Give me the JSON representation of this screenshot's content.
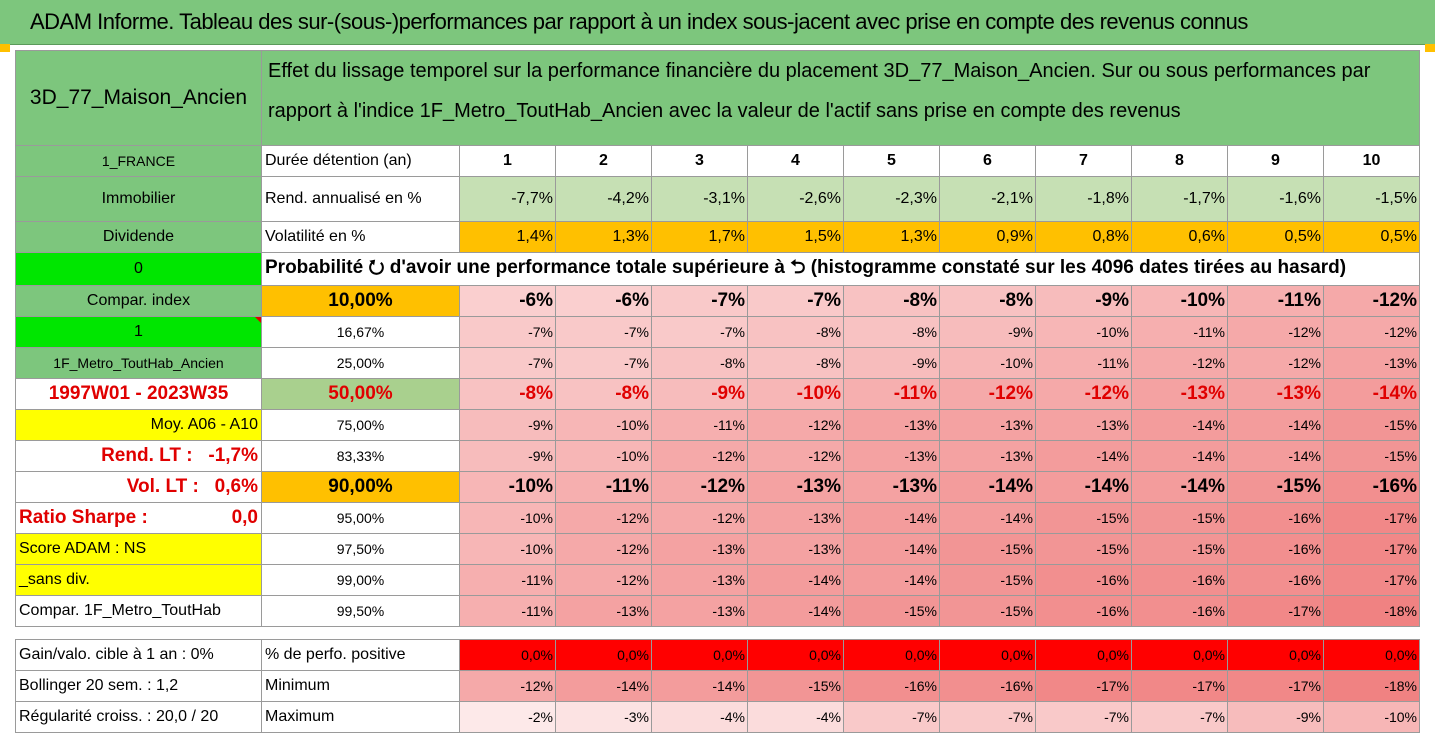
{
  "title": "ADAM Informe. Tableau des sur-(sous-)performances par rapport à un index sous-jacent avec prise en compte des revenus connus",
  "header": {
    "asset": "3D_77_Maison_Ancien",
    "description": "Effet du lissage temporel sur la performance financière du placement 3D_77_Maison_Ancien. Sur ou sous performances par rapport à l'indice 1F_Metro_ToutHab_Ancien avec la valeur de l'actif sans prise en compte des revenus"
  },
  "side": {
    "region": "1_FRANCE",
    "type": "Immobilier",
    "dividend": "Dividende",
    "zero": "0",
    "compar_index": "Compar. index",
    "one": "1",
    "index_name": "1F_Metro_ToutHab_Ancien",
    "period": "1997W01 - 2023W35",
    "moy": "Moy. A06 - A10",
    "rend_lt": "Rend. LT :   -1,7%",
    "vol_lt": "Vol. LT :   0,6%",
    "sharpe_label": "Ratio Sharpe :",
    "sharpe_value": "0,0",
    "score": "Score ADAM : NS",
    "sans_div": "_sans div.",
    "compar_metro": "Compar. 1F_Metro_ToutHab"
  },
  "row_labels": {
    "duree": "Durée détention (an)",
    "rend": "Rend. annualisé en %",
    "vol": "Volatilité en %",
    "proba": "Probabilité ⭮ d'avoir une performance totale supérieure à ⮌ (histogramme constaté sur les 4096 dates tirées au hasard)"
  },
  "years": [
    "1",
    "2",
    "3",
    "4",
    "5",
    "6",
    "7",
    "8",
    "9",
    "10"
  ],
  "rend": [
    "-7,7%",
    "-4,2%",
    "-3,1%",
    "-2,6%",
    "-2,3%",
    "-2,1%",
    "-1,8%",
    "-1,7%",
    "-1,6%",
    "-1,5%"
  ],
  "vol": [
    "1,4%",
    "1,3%",
    "1,7%",
    "1,5%",
    "1,3%",
    "0,9%",
    "0,8%",
    "0,6%",
    "0,5%",
    "0,5%"
  ],
  "prob_rows": [
    {
      "p": "10,00%",
      "v": [
        "-6%",
        "-6%",
        "-7%",
        "-7%",
        "-8%",
        "-8%",
        "-9%",
        "-10%",
        "-11%",
        "-12%"
      ]
    },
    {
      "p": "16,67%",
      "v": [
        "-7%",
        "-7%",
        "-7%",
        "-8%",
        "-8%",
        "-9%",
        "-10%",
        "-11%",
        "-12%",
        "-12%"
      ]
    },
    {
      "p": "25,00%",
      "v": [
        "-7%",
        "-7%",
        "-8%",
        "-8%",
        "-9%",
        "-10%",
        "-11%",
        "-12%",
        "-12%",
        "-13%"
      ]
    },
    {
      "p": "50,00%",
      "v": [
        "-8%",
        "-8%",
        "-9%",
        "-10%",
        "-11%",
        "-12%",
        "-12%",
        "-13%",
        "-13%",
        "-14%"
      ]
    },
    {
      "p": "75,00%",
      "v": [
        "-9%",
        "-10%",
        "-11%",
        "-12%",
        "-13%",
        "-13%",
        "-13%",
        "-14%",
        "-14%",
        "-15%"
      ]
    },
    {
      "p": "83,33%",
      "v": [
        "-9%",
        "-10%",
        "-12%",
        "-12%",
        "-13%",
        "-13%",
        "-14%",
        "-14%",
        "-14%",
        "-15%"
      ]
    },
    {
      "p": "90,00%",
      "v": [
        "-10%",
        "-11%",
        "-12%",
        "-13%",
        "-13%",
        "-14%",
        "-14%",
        "-14%",
        "-15%",
        "-16%"
      ]
    },
    {
      "p": "95,00%",
      "v": [
        "-10%",
        "-12%",
        "-12%",
        "-13%",
        "-14%",
        "-14%",
        "-15%",
        "-15%",
        "-16%",
        "-17%"
      ]
    },
    {
      "p": "97,50%",
      "v": [
        "-10%",
        "-12%",
        "-13%",
        "-13%",
        "-14%",
        "-15%",
        "-15%",
        "-15%",
        "-16%",
        "-17%"
      ]
    },
    {
      "p": "99,00%",
      "v": [
        "-11%",
        "-12%",
        "-13%",
        "-14%",
        "-14%",
        "-15%",
        "-16%",
        "-16%",
        "-16%",
        "-17%"
      ]
    },
    {
      "p": "99,50%",
      "v": [
        "-11%",
        "-13%",
        "-13%",
        "-14%",
        "-15%",
        "-15%",
        "-16%",
        "-16%",
        "-17%",
        "-18%"
      ]
    }
  ],
  "bottom": [
    {
      "left": "Gain/valo. cible à 1 an :  0%",
      "label": "% de perfo. positive",
      "v": [
        "0,0%",
        "0,0%",
        "0,0%",
        "0,0%",
        "0,0%",
        "0,0%",
        "0,0%",
        "0,0%",
        "0,0%",
        "0,0%"
      ]
    },
    {
      "left": "Bollinger 20 sem. :  1,2",
      "label": "Minimum",
      "v": [
        "-12%",
        "-14%",
        "-14%",
        "-15%",
        "-16%",
        "-16%",
        "-17%",
        "-17%",
        "-17%",
        "-18%"
      ]
    },
    {
      "left": "Régularité croiss. : 20,0 / 20",
      "label": "Maximum",
      "v": [
        "-2%",
        "-3%",
        "-4%",
        "-4%",
        "-7%",
        "-7%",
        "-7%",
        "-7%",
        "-9%",
        "-10%"
      ]
    }
  ],
  "colors": {
    "banner_green": "#7dc67d",
    "light_green": "#c6e0b4",
    "bright_green": "#00e600",
    "yellow": "#ffff00",
    "orange": "#ffc000",
    "red_text": "#e00000",
    "heat_light": "#fde3e3",
    "heat_dark": "#f08080",
    "positive_red": "#ff0000"
  }
}
